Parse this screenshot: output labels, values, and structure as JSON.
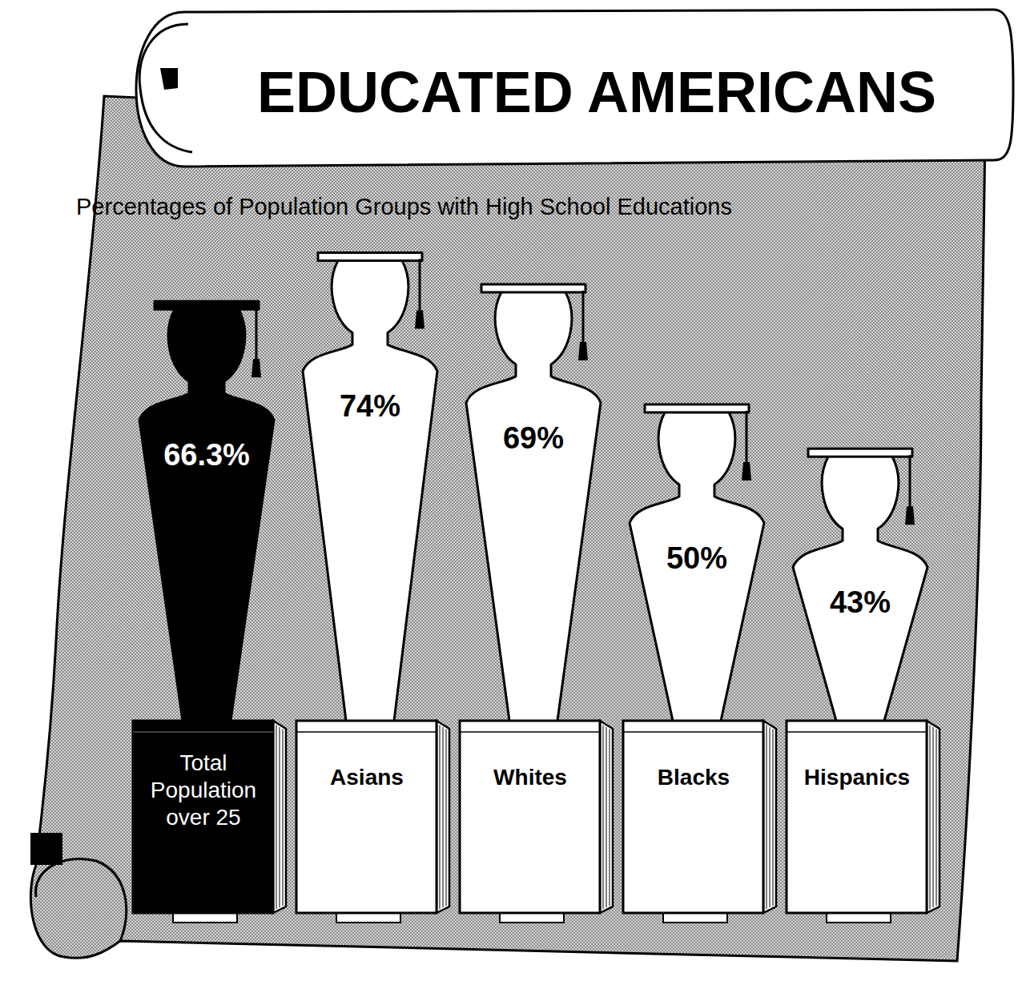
{
  "chart_data": {
    "type": "bar",
    "title": "EDUCATED AMERICANS",
    "subtitle": "Percentages of Population Groups with High School Educations",
    "categories": [
      "Total Population over 25",
      "Asians",
      "Whites",
      "Blacks",
      "Hispanics"
    ],
    "values": [
      66.3,
      74,
      69,
      50,
      43
    ],
    "value_labels": [
      "66.3%",
      "74%",
      "69%",
      "50%",
      "43%"
    ],
    "colors": [
      "#000000",
      "#ffffff",
      "#ffffff",
      "#ffffff",
      "#ffffff"
    ],
    "ylim": [
      0,
      80
    ],
    "data_labels": true,
    "tick_labels": false
  }
}
